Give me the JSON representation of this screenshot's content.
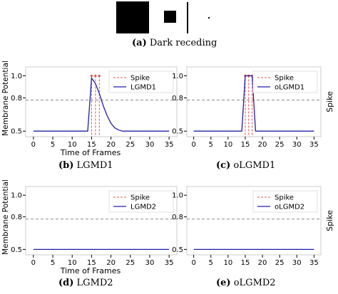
{
  "stimulus": {
    "caption_letter": "(a)",
    "caption_text": "Dark receding"
  },
  "chart_data": [
    {
      "id": "b",
      "type": "line",
      "caption_letter": "(b)",
      "caption_text": "LGMD1",
      "xlabel": "Time of Frames",
      "ylabel": "Membrane Potential",
      "right_label": "",
      "xlim": [
        -2,
        37
      ],
      "ylim": [
        0.45,
        1.08
      ],
      "xticks": [
        0,
        5,
        10,
        15,
        20,
        25,
        30,
        35
      ],
      "yticks": [
        0.5,
        0.8,
        1.0
      ],
      "threshold": 0.78,
      "legend": {
        "placement": "top-right",
        "spike_label": "Spike",
        "line_label": "LGMD1"
      },
      "spikes": [
        15,
        16,
        17
      ],
      "series": [
        {
          "name": "LGMD1",
          "x": [
            0,
            1,
            2,
            3,
            4,
            5,
            6,
            7,
            8,
            9,
            10,
            11,
            12,
            13,
            14,
            15,
            16,
            17,
            18,
            19,
            20,
            21,
            22,
            23,
            24,
            25,
            26,
            27,
            28,
            29,
            30,
            31,
            32,
            33,
            34,
            35
          ],
          "y": [
            0.5,
            0.5,
            0.5,
            0.5,
            0.5,
            0.5,
            0.5,
            0.5,
            0.5,
            0.5,
            0.5,
            0.5,
            0.5,
            0.5,
            0.5,
            0.98,
            0.93,
            0.84,
            0.73,
            0.64,
            0.57,
            0.53,
            0.51,
            0.5,
            0.5,
            0.5,
            0.5,
            0.5,
            0.5,
            0.5,
            0.5,
            0.5,
            0.5,
            0.5,
            0.5,
            0.5
          ]
        }
      ]
    },
    {
      "id": "c",
      "type": "line",
      "caption_letter": "(c)",
      "caption_text": "oLGMD1",
      "xlabel": "",
      "ylabel": "",
      "right_label": "Spike",
      "xlim": [
        -2,
        37
      ],
      "ylim": [
        0.45,
        1.08
      ],
      "xticks": [
        0,
        5,
        10,
        15,
        20,
        25,
        30,
        35
      ],
      "yticks": [
        0.5,
        0.8,
        1.0
      ],
      "threshold": 0.78,
      "legend": {
        "placement": "top-right",
        "spike_label": "Spike",
        "line_label": "oLGMD1"
      },
      "spikes": [
        15,
        16,
        17
      ],
      "series": [
        {
          "name": "oLGMD1",
          "x": [
            0,
            1,
            2,
            3,
            4,
            5,
            6,
            7,
            8,
            9,
            10,
            11,
            12,
            13,
            14,
            15,
            16,
            17,
            18,
            19,
            20,
            21,
            22,
            23,
            24,
            25,
            26,
            27,
            28,
            29,
            30,
            31,
            32,
            33,
            34,
            35
          ],
          "y": [
            0.5,
            0.5,
            0.5,
            0.5,
            0.5,
            0.5,
            0.5,
            0.5,
            0.5,
            0.5,
            0.5,
            0.5,
            0.5,
            0.5,
            0.5,
            1.0,
            1.0,
            1.0,
            0.5,
            0.5,
            0.5,
            0.5,
            0.5,
            0.5,
            0.5,
            0.5,
            0.5,
            0.5,
            0.5,
            0.5,
            0.5,
            0.5,
            0.5,
            0.5,
            0.5,
            0.5
          ]
        }
      ]
    },
    {
      "id": "d",
      "type": "line",
      "caption_letter": "(d)",
      "caption_text": "LGMD2",
      "xlabel": "Time of Frames",
      "ylabel": "Membrane Potential",
      "right_label": "",
      "xlim": [
        -2,
        37
      ],
      "ylim": [
        0.45,
        1.08
      ],
      "xticks": [
        0,
        5,
        10,
        15,
        20,
        25,
        30,
        35
      ],
      "yticks": [
        0.5,
        0.8,
        1.0
      ],
      "threshold": 0.78,
      "legend": {
        "placement": "top-right",
        "spike_label": "Spike",
        "line_label": "LGMD2"
      },
      "spikes": [],
      "series": [
        {
          "name": "LGMD2",
          "x": [
            0,
            35
          ],
          "y": [
            0.5,
            0.5
          ]
        }
      ]
    },
    {
      "id": "e",
      "type": "line",
      "caption_letter": "(e)",
      "caption_text": "oLGMD2",
      "xlabel": "",
      "ylabel": "",
      "right_label": "Spike",
      "xlim": [
        -2,
        37
      ],
      "ylim": [
        0.45,
        1.08
      ],
      "xticks": [
        0,
        5,
        10,
        15,
        20,
        25,
        30,
        35
      ],
      "yticks": [
        0.5,
        0.8,
        1.0
      ],
      "threshold": 0.78,
      "legend": {
        "placement": "top-right",
        "spike_label": "Spike",
        "line_label": "oLGMD2"
      },
      "spikes": [],
      "series": [
        {
          "name": "oLGMD2",
          "x": [
            0,
            35
          ],
          "y": [
            0.5,
            0.5
          ]
        }
      ]
    }
  ],
  "colors": {
    "line": "#1f1fa8",
    "spike": "#e85050",
    "threshold": "#888888",
    "axis": "#000000",
    "grid_frame": "#cccccc"
  }
}
